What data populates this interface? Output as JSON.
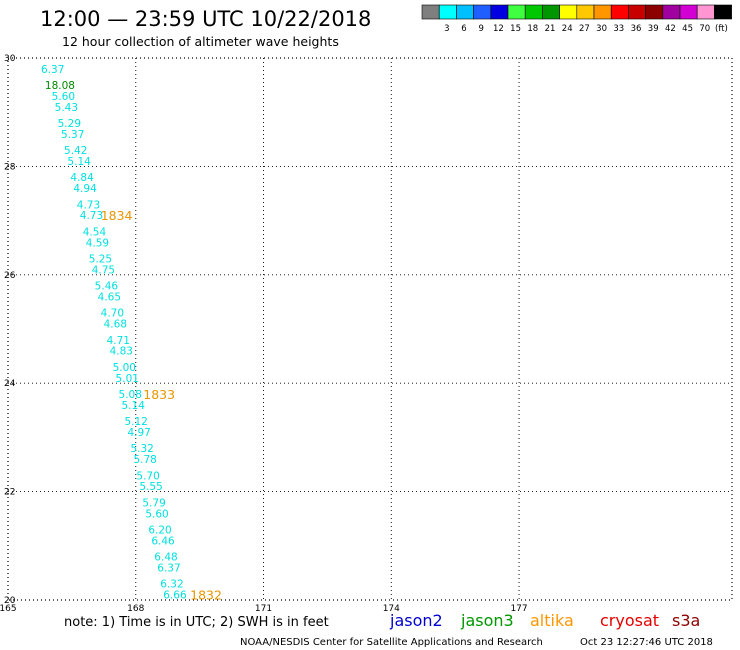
{
  "header": {
    "title": "12:00 — 23:59 UTC 10/22/2018",
    "subtitle": "12 hour collection of altimeter wave heights"
  },
  "colorbar": {
    "unit": "(ft)",
    "items": [
      {
        "label": "",
        "color": "#7f7f7f"
      },
      {
        "label": "3",
        "color": "#00ffff"
      },
      {
        "label": "6",
        "color": "#00bfff"
      },
      {
        "label": "9",
        "color": "#1f5fff"
      },
      {
        "label": "12",
        "color": "#0000e0"
      },
      {
        "label": "15",
        "color": "#40ff40"
      },
      {
        "label": "18",
        "color": "#00c800"
      },
      {
        "label": "21",
        "color": "#009600"
      },
      {
        "label": "24",
        "color": "#ffff00"
      },
      {
        "label": "27",
        "color": "#ffc800"
      },
      {
        "label": "30",
        "color": "#ff9600"
      },
      {
        "label": "33",
        "color": "#ff0000"
      },
      {
        "label": "36",
        "color": "#c80000"
      },
      {
        "label": "39",
        "color": "#8c0000"
      },
      {
        "label": "42",
        "color": "#a000a0"
      },
      {
        "label": "45",
        "color": "#d200d2"
      },
      {
        "label": "70",
        "color": "#ff96d2"
      },
      {
        "label": "",
        "color": "#000000"
      }
    ]
  },
  "chart_data": {
    "type": "scatter",
    "title": "12:00 — 23:59 UTC 10/22/2018",
    "subtitle": "12 hour collection of altimeter wave heights",
    "xlabel": "",
    "ylabel": "",
    "xlim": [
      165,
      182
    ],
    "ylim": [
      20,
      30
    ],
    "x_ticks": [
      {
        "value": 165,
        "label": "165"
      },
      {
        "value": 168,
        "label": "168"
      },
      {
        "value": 171,
        "label": "171"
      },
      {
        "value": 174,
        "label": "174"
      },
      {
        "value": 177,
        "label": "177"
      }
    ],
    "y_ticks": [
      {
        "value": 20,
        "label": "20"
      },
      {
        "value": 22,
        "label": "22"
      },
      {
        "value": 24,
        "label": "24"
      },
      {
        "value": 26,
        "label": "26"
      },
      {
        "value": 28,
        "label": "28"
      },
      {
        "value": 30,
        "label": "30"
      }
    ],
    "grid": true,
    "grid_style": "dotted",
    "series": [
      {
        "mission": "altika",
        "color": "#00e0e0",
        "points": [
          {
            "x": 166.05,
            "y": 29.8,
            "value": "6.37"
          },
          {
            "x": 166.3,
            "y": 29.3,
            "value": "5.60"
          },
          {
            "x": 166.37,
            "y": 29.1,
            "value": "5.43"
          },
          {
            "x": 166.44,
            "y": 28.8,
            "value": "5.29"
          },
          {
            "x": 166.52,
            "y": 28.6,
            "value": "5.37"
          },
          {
            "x": 166.59,
            "y": 28.3,
            "value": "5.42"
          },
          {
            "x": 166.67,
            "y": 28.1,
            "value": "5.14"
          },
          {
            "x": 166.74,
            "y": 27.8,
            "value": "4.84"
          },
          {
            "x": 166.81,
            "y": 27.6,
            "value": "4.94"
          },
          {
            "x": 166.89,
            "y": 27.3,
            "value": "4.73"
          },
          {
            "x": 166.96,
            "y": 27.1,
            "value": "4.73"
          },
          {
            "x": 167.03,
            "y": 26.8,
            "value": "4.54"
          },
          {
            "x": 167.1,
            "y": 26.6,
            "value": "4.59"
          },
          {
            "x": 167.17,
            "y": 26.3,
            "value": "5.25"
          },
          {
            "x": 167.24,
            "y": 26.1,
            "value": "4.75"
          },
          {
            "x": 167.31,
            "y": 25.8,
            "value": "5.46"
          },
          {
            "x": 167.38,
            "y": 25.6,
            "value": "4.65"
          },
          {
            "x": 167.45,
            "y": 25.3,
            "value": "4.70"
          },
          {
            "x": 167.52,
            "y": 25.1,
            "value": "4.68"
          },
          {
            "x": 167.59,
            "y": 24.8,
            "value": "4.71"
          },
          {
            "x": 167.66,
            "y": 24.6,
            "value": "4.83"
          },
          {
            "x": 167.73,
            "y": 24.3,
            "value": "5.00"
          },
          {
            "x": 167.8,
            "y": 24.1,
            "value": "5.01"
          },
          {
            "x": 167.87,
            "y": 23.8,
            "value": "5.08"
          },
          {
            "x": 167.94,
            "y": 23.6,
            "value": "5.14"
          },
          {
            "x": 168.01,
            "y": 23.3,
            "value": "5.12"
          },
          {
            "x": 168.08,
            "y": 23.1,
            "value": "4.97"
          },
          {
            "x": 168.15,
            "y": 22.8,
            "value": "5.32"
          },
          {
            "x": 168.22,
            "y": 22.6,
            "value": "5.78"
          },
          {
            "x": 168.29,
            "y": 22.3,
            "value": "5.70"
          },
          {
            "x": 168.36,
            "y": 22.1,
            "value": "5.55"
          },
          {
            "x": 168.43,
            "y": 21.8,
            "value": "5.79"
          },
          {
            "x": 168.5,
            "y": 21.6,
            "value": "5.60"
          },
          {
            "x": 168.57,
            "y": 21.3,
            "value": "6.20"
          },
          {
            "x": 168.64,
            "y": 21.1,
            "value": "6.46"
          },
          {
            "x": 168.71,
            "y": 20.8,
            "value": "6.48"
          },
          {
            "x": 168.78,
            "y": 20.6,
            "value": "6.37"
          },
          {
            "x": 168.85,
            "y": 20.3,
            "value": "6.32"
          },
          {
            "x": 168.92,
            "y": 20.1,
            "value": "6.66"
          }
        ]
      },
      {
        "mission": "altika",
        "color": "#008c00",
        "points": [
          {
            "x": 166.22,
            "y": 29.5,
            "value": "18.08"
          }
        ]
      }
    ],
    "pass_labels": [
      {
        "x": 167.55,
        "y": 27.1,
        "text": "1834",
        "color": "#e69600"
      },
      {
        "x": 168.55,
        "y": 23.8,
        "text": "1833",
        "color": "#e69600"
      },
      {
        "x": 169.65,
        "y": 20.1,
        "text": "1832",
        "color": "#e69600"
      }
    ]
  },
  "footer": {
    "note": "note: 1) Time is in UTC; 2) SWH is in feet",
    "missions": [
      {
        "label": "jason2",
        "color": "#0000d2"
      },
      {
        "label": "jason3",
        "color": "#009600"
      },
      {
        "label": "altika",
        "color": "#ff9600"
      },
      {
        "label": "cryosat",
        "color": "#e60000"
      },
      {
        "label": "s3a",
        "color": "#8c0000"
      }
    ],
    "credit": "NOAA/NESDIS Center for Satellite Applications and Research",
    "timestamp": "Oct 23 12:27:46 UTC 2018"
  }
}
